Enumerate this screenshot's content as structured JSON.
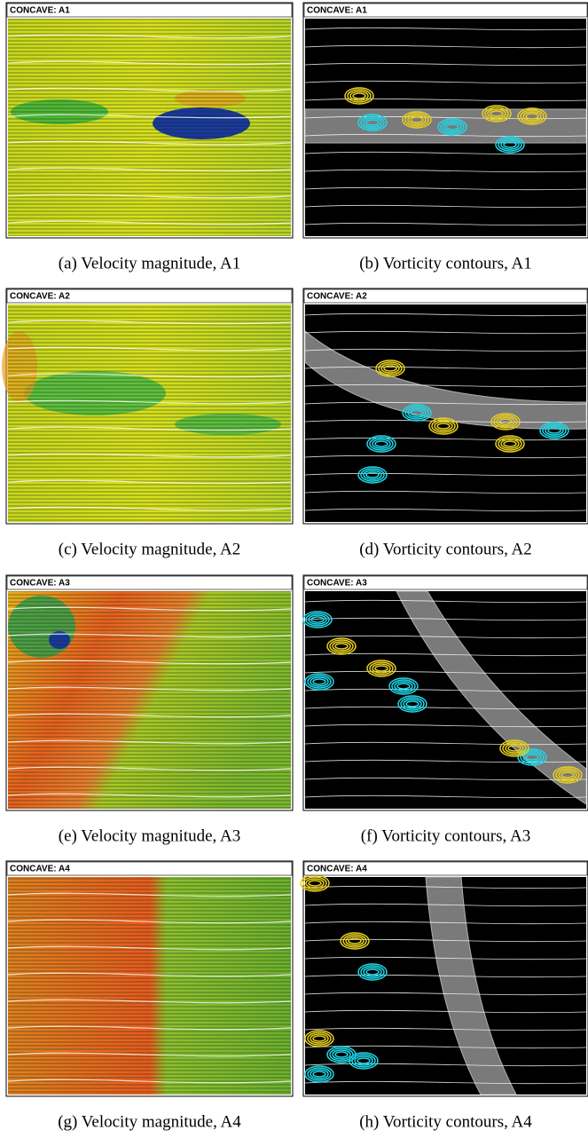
{
  "rows": [
    {
      "left": {
        "header": "CONCAVE: A1",
        "caption": "(a) Velocity magnitude, A1"
      },
      "right": {
        "header": "CONCAVE: A1",
        "caption": "(b) Vorticity contours, A1"
      }
    },
    {
      "left": {
        "header": "CONCAVE: A2",
        "caption": "(c) Velocity magnitude, A2"
      },
      "right": {
        "header": "CONCAVE: A2",
        "caption": "(d) Vorticity contours, A2"
      }
    },
    {
      "left": {
        "header": "CONCAVE: A3",
        "caption": "(e) Velocity magnitude, A3"
      },
      "right": {
        "header": "CONCAVE: A3",
        "caption": "(f) Vorticity contours, A3"
      }
    },
    {
      "left": {
        "header": "CONCAVE: A4",
        "caption": "(g) Velocity magnitude, A4"
      },
      "right": {
        "header": "CONCAVE: A4",
        "caption": "(h) Vorticity contours, A4"
      }
    }
  ]
}
